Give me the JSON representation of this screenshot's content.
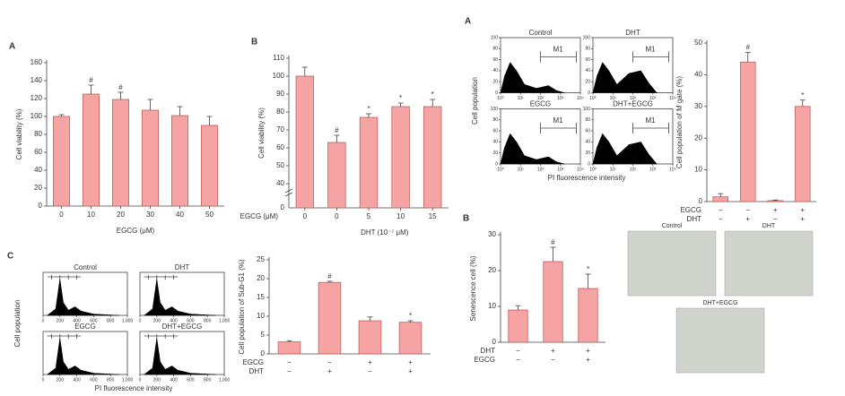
{
  "chart_data": [
    {
      "type": "bar",
      "panel_label": "A",
      "ylabel": "Cell viability (%)",
      "xlabel": "EGCG (μM)",
      "categories": [
        "0",
        "10",
        "20",
        "30",
        "40",
        "50"
      ],
      "values": [
        100,
        125,
        119,
        107,
        101,
        90
      ],
      "errors": [
        2,
        10,
        8,
        12,
        10,
        10
      ],
      "annotations": [
        null,
        "#",
        "#",
        null,
        null,
        null
      ],
      "color": "#f5a3a3",
      "ylim": [
        0,
        160
      ],
      "yticks": [
        0,
        20,
        40,
        60,
        80,
        100,
        120,
        140,
        160
      ]
    },
    {
      "type": "bar",
      "panel_label": "B",
      "ylabel": "Cell viability (%)",
      "xlabel": "DHT (10⁻⁷ μM)",
      "row_label": "EGCG (μM)",
      "categories": [
        "0",
        "0",
        "5",
        "10",
        "15"
      ],
      "values": [
        100,
        63,
        77,
        83,
        83
      ],
      "errors": [
        5,
        4,
        2,
        2,
        4
      ],
      "annotations": [
        null,
        "#",
        "*",
        "*",
        "*"
      ],
      "color": "#f5a3a3",
      "axis_break_label": "0",
      "ylim": [
        40,
        110
      ],
      "yticks": [
        40,
        50,
        60,
        70,
        80,
        90,
        100,
        110
      ]
    },
    {
      "type": "flow",
      "panel_label": "C",
      "ylabel": "Cell population",
      "xlabel": "PI fluorescence intensity",
      "panels": [
        "Control",
        "DHT",
        "EGCG",
        "DHT+EGCG"
      ],
      "xlim": [
        0,
        1000
      ],
      "xticks": [
        0,
        200,
        400,
        600,
        800,
        {
          "value": 1000,
          "label": "1,000"
        }
      ]
    },
    {
      "type": "bar",
      "ylabel": "Cell population of Sub-G1 (%)",
      "values": [
        3.2,
        19,
        8.8,
        8.4
      ],
      "errors": [
        0.3,
        0.3,
        1,
        0.4
      ],
      "annotations": [
        null,
        "#",
        null,
        "*"
      ],
      "color": "#f5a3a3",
      "conditions": [
        {
          "name": "EGCG",
          "values": [
            "−",
            "−",
            "+",
            "+"
          ]
        },
        {
          "name": "DHT",
          "values": [
            "−",
            "+",
            "−",
            "+"
          ]
        }
      ],
      "ylim": [
        0,
        25
      ],
      "yticks": [
        0,
        5,
        10,
        15,
        20,
        25
      ]
    },
    {
      "type": "flow",
      "panel_label": "A",
      "ylabel": "Cell population",
      "xlabel": "PI fluorescence intensity",
      "gate_label": "M1",
      "panels": [
        "Control",
        "DHT",
        "EGCG",
        "DHT+EGCG"
      ],
      "xlim": [
        0,
        4
      ],
      "xticks": [
        {
          "value": 0,
          "label": "10⁰"
        },
        {
          "value": 1,
          "label": "10¹"
        },
        {
          "value": 2,
          "label": "10²"
        },
        {
          "value": 3,
          "label": "10³"
        },
        {
          "value": 4,
          "label": "10⁴"
        }
      ],
      "ylim": [
        0,
        100
      ],
      "yticks": [
        0,
        20,
        40,
        60,
        80,
        100
      ]
    },
    {
      "type": "bar",
      "ylabel": "Cell population of M gate (%)",
      "values": [
        1.5,
        44,
        0.3,
        30
      ],
      "errors": [
        1,
        3,
        0.2,
        2
      ],
      "annotations": [
        null,
        "#",
        null,
        "*"
      ],
      "color": "#f5a3a3",
      "conditions": [
        {
          "name": "EGCG",
          "values": [
            "−",
            "−",
            "+",
            "+"
          ]
        },
        {
          "name": "DHT",
          "values": [
            "−",
            "+",
            "−",
            "+"
          ]
        }
      ],
      "ylim": [
        0,
        50
      ],
      "yticks": [
        0,
        10,
        20,
        30,
        40,
        50
      ]
    },
    {
      "type": "bar",
      "panel_label": "B",
      "ylabel": "Senescence cell (%)",
      "values": [
        9,
        22.5,
        15
      ],
      "errors": [
        1.2,
        4,
        4
      ],
      "annotations": [
        null,
        "#",
        "*"
      ],
      "color": "#f5a3a3",
      "conditions": [
        {
          "name": "DHT",
          "values": [
            "−",
            "+",
            "+"
          ]
        },
        {
          "name": "EGCG",
          "values": [
            "−",
            "−",
            "+"
          ]
        }
      ],
      "ylim": [
        0,
        30
      ],
      "yticks": [
        0,
        10,
        20,
        30
      ]
    }
  ],
  "images": {
    "labels": [
      "Control",
      "DHT",
      "DHT+EGCG"
    ]
  }
}
